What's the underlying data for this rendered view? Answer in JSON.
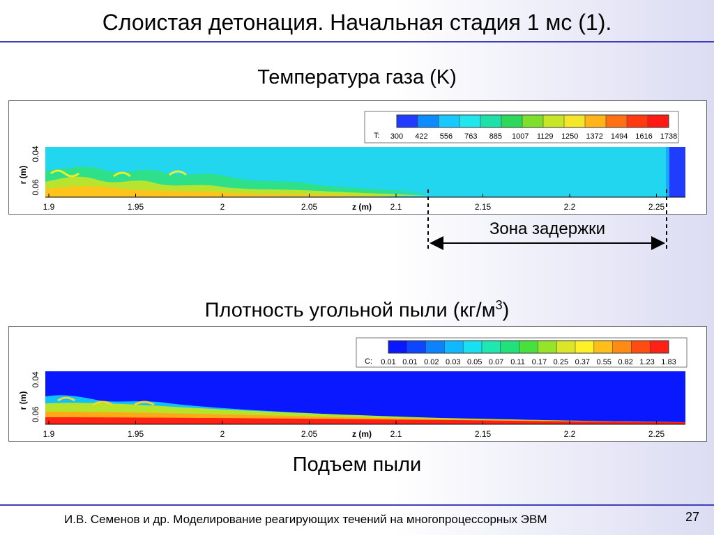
{
  "slide": {
    "title": "Слоистая детонация. Начальная стадия 1 мс (1).",
    "footer": "И.В. Семенов и др. Моделирование реагирующих течений на многопроцессорных ЭВМ",
    "page_number": "27"
  },
  "temperature_panel": {
    "heading": "Температура газа (K)",
    "legend_label": "T:",
    "legend_values": [
      "300",
      "422",
      "556",
      "763",
      "885",
      "1007",
      "1129",
      "1250",
      "1372",
      "1494",
      "1616",
      "1738"
    ],
    "x_ticks": [
      "1.9",
      "1.95",
      "2",
      "2.05",
      "2.1",
      "2.15",
      "2.2",
      "2.25"
    ],
    "x_axis_label": "z (m)",
    "y_ticks": [
      "0.04",
      "0.06"
    ],
    "y_axis_label": "r (m)"
  },
  "delay_zone": {
    "label": "Зона задержки"
  },
  "density_panel": {
    "heading_main": "Плотность угольной пыли (кг/м",
    "heading_sup": "3",
    "heading_end": ")",
    "legend_label": "C:",
    "legend_values": [
      "0.01",
      "0.01",
      "0.02",
      "0.03",
      "0.05",
      "0.07",
      "0.11",
      "0.17",
      "0.25",
      "0.37",
      "0.55",
      "0.82",
      "1.23",
      "1.83"
    ],
    "x_ticks": [
      "1.9",
      "1.95",
      "2",
      "2.05",
      "2.1",
      "2.15",
      "2.2",
      "2.25"
    ],
    "x_axis_label": "z (m)",
    "y_ticks": [
      "0.04",
      "0.06"
    ],
    "y_axis_label": "r (m)",
    "caption": "Подъем пыли"
  },
  "colors": {
    "accent_rule": "#3b3fb8",
    "temperature_scale": [
      "#1f3cff",
      "#0c8cff",
      "#18c8ff",
      "#22e6ee",
      "#1ee0a8",
      "#2ed85a",
      "#7ee02c",
      "#c8e628",
      "#f4e628",
      "#ffb41a",
      "#ff7014",
      "#ff3a10",
      "#ff1a14"
    ],
    "density_scale": [
      "#0a18ff",
      "#0c46ff",
      "#0c82ff",
      "#10b8ff",
      "#18e0f0",
      "#1ee8b0",
      "#22e07a",
      "#48e03c",
      "#96e42a",
      "#dce628",
      "#fff028",
      "#ffbe1a",
      "#ff8a14",
      "#ff4c10",
      "#ff2214"
    ]
  }
}
